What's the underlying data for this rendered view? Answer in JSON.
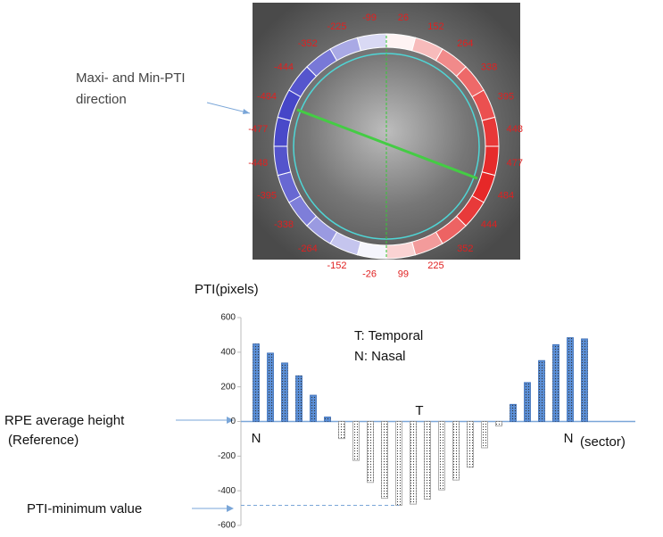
{
  "image": {
    "sector_values": [
      -99,
      26,
      152,
      264,
      338,
      395,
      448,
      477,
      484,
      444,
      352,
      225,
      99,
      -26,
      -152,
      -264,
      -338,
      -395,
      -448,
      -477,
      -484,
      -444,
      -352,
      -225
    ]
  },
  "annotations": {
    "direction_line1": "Maxi- and Min-PTI",
    "direction_line2": "direction",
    "rpe_line1": "RPE average height",
    "rpe_line2": "(Reference)",
    "minimum": "PTI-minimum value",
    "legend_t": "T: Temporal",
    "legend_n": "N: Nasal",
    "t_mark": "T",
    "n_left": "N",
    "n_right": "N"
  },
  "chart_data": {
    "type": "bar",
    "y_label": "PTI(pixels)",
    "x_label": "(sector)",
    "values": [
      448,
      395,
      338,
      264,
      152,
      26,
      -99,
      -225,
      -352,
      -444,
      -484,
      -477,
      -448,
      -395,
      -338,
      -264,
      -152,
      -26,
      99,
      225,
      352,
      444,
      484,
      477
    ],
    "positive_color": "#5b8fd6",
    "negative_color": "#ffffff",
    "ylim": [
      -600,
      600
    ],
    "yticks": [
      -600,
      -400,
      -200,
      0,
      200,
      400,
      600
    ]
  }
}
